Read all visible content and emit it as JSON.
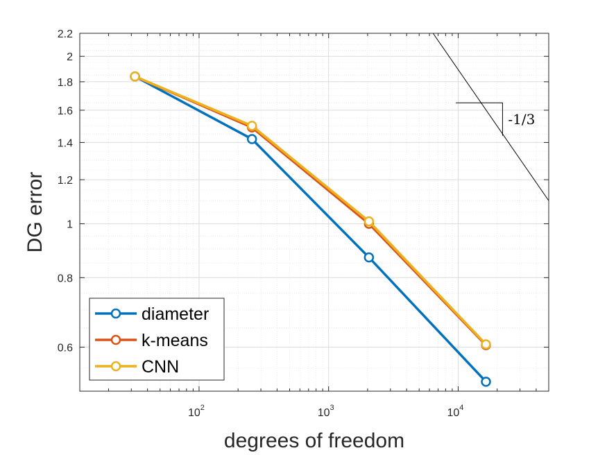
{
  "chart_data": {
    "type": "line",
    "xscale": "log",
    "yscale": "log",
    "xlabel": "degrees of freedom",
    "ylabel": "DG error",
    "xlim": [
      12,
      50000
    ],
    "ylim": [
      0.5,
      2.2
    ],
    "grid": true,
    "minor_grid": true,
    "legend_position": "bottom-left",
    "x_ticks": [
      {
        "value": 100,
        "base": "10",
        "exp": "2"
      },
      {
        "value": 1000,
        "base": "10",
        "exp": "3"
      },
      {
        "value": 10000,
        "base": "10",
        "exp": "4"
      }
    ],
    "y_ticks": [
      {
        "value": 0.6,
        "label": "0.6"
      },
      {
        "value": 0.8,
        "label": "0.8"
      },
      {
        "value": 1.0,
        "label": "1"
      },
      {
        "value": 1.2,
        "label": "1.2"
      },
      {
        "value": 1.4,
        "label": "1.4"
      },
      {
        "value": 1.6,
        "label": "1.6"
      },
      {
        "value": 1.8,
        "label": "1.8"
      },
      {
        "value": 2.0,
        "label": "2"
      },
      {
        "value": 2.2,
        "label": "2.2"
      }
    ],
    "series": [
      {
        "name": "diameter",
        "color": "#0072BD",
        "x": [
          32,
          256,
          2048,
          16384
        ],
        "y": [
          1.84,
          1.42,
          0.87,
          0.52
        ]
      },
      {
        "name": "k-means",
        "color": "#D95319",
        "x": [
          32,
          256,
          2048,
          16384
        ],
        "y": [
          1.84,
          1.49,
          1.0,
          0.605
        ]
      },
      {
        "name": "CNN",
        "color": "#EDB120",
        "x": [
          32,
          256,
          2048,
          16384
        ],
        "y": [
          1.84,
          1.5,
          1.01,
          0.607
        ]
      }
    ],
    "slope_annotation": {
      "label": "-1/3",
      "line": {
        "x": [
          6400,
          50000
        ],
        "y": [
          2.2,
          1.1
        ]
      },
      "triangle": {
        "x": [
          9600,
          22000
        ],
        "y": [
          1.65,
          1.44
        ]
      }
    }
  }
}
